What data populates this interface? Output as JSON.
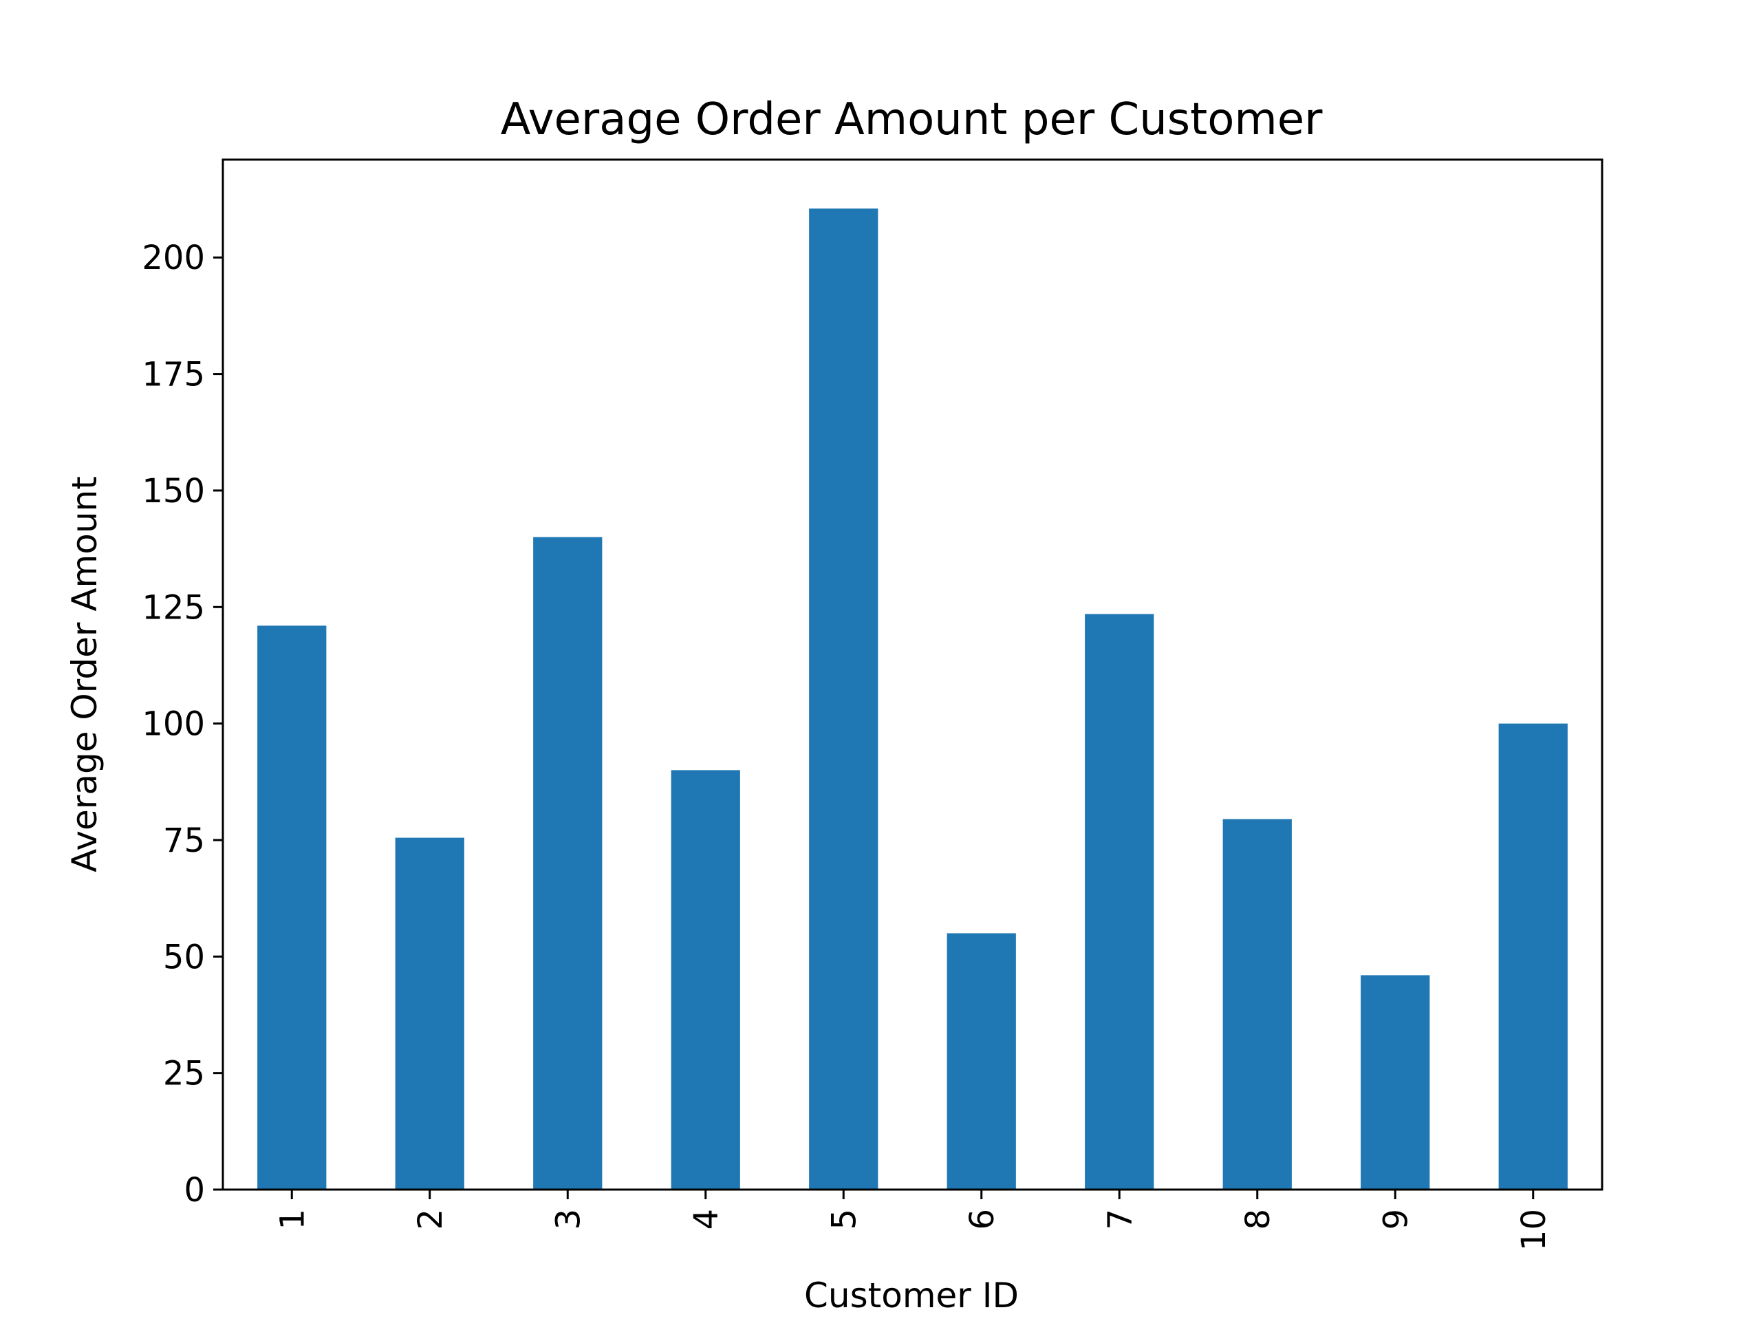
{
  "chart_data": {
    "type": "bar",
    "title": "Average Order Amount per Customer",
    "xlabel": "Customer ID",
    "ylabel": "Average Order Amount",
    "categories": [
      "1",
      "2",
      "3",
      "4",
      "5",
      "6",
      "7",
      "8",
      "9",
      "10"
    ],
    "values": [
      121,
      75.5,
      140,
      90,
      210.5,
      55,
      123.5,
      79.5,
      46,
      100
    ],
    "ylim": [
      0,
      221
    ],
    "yticks": [
      0,
      25,
      50,
      75,
      100,
      125,
      150,
      175,
      200
    ],
    "grid": false,
    "bar_color": "#1f77b4"
  }
}
